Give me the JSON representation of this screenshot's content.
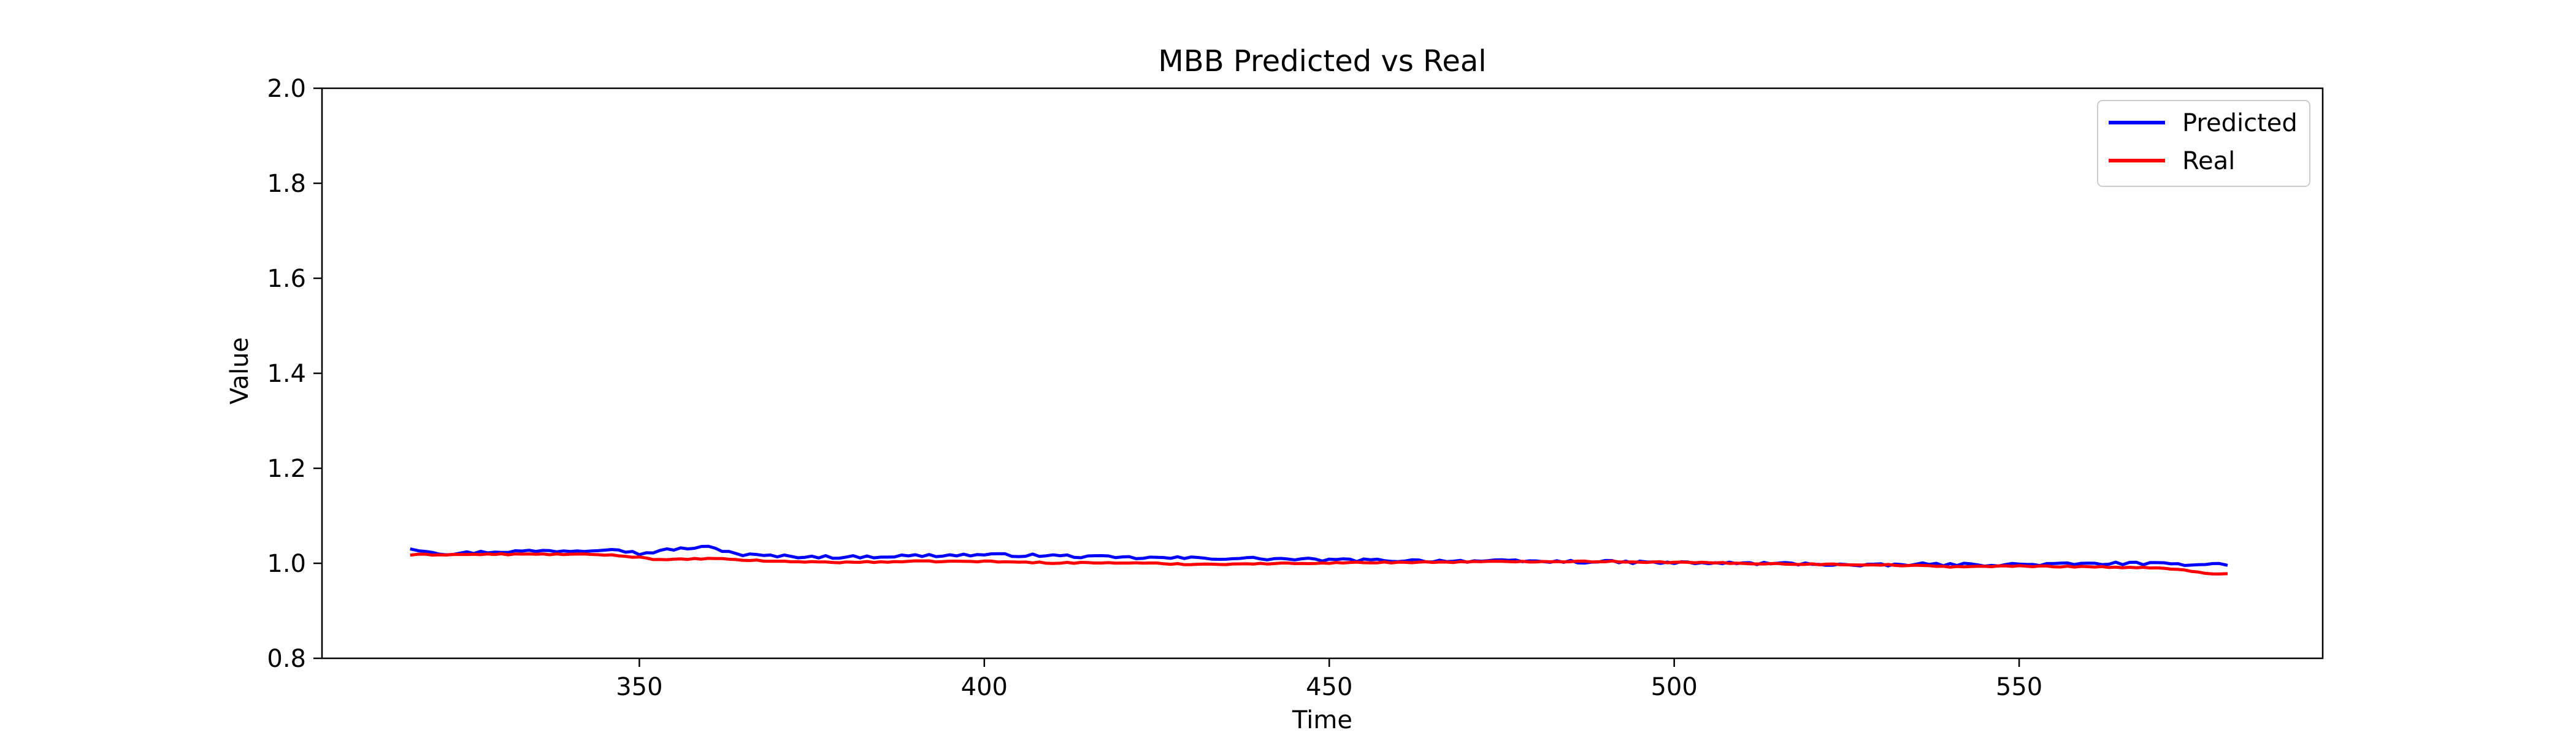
{
  "chart_data": {
    "type": "line",
    "title": "MBB Predicted vs Real",
    "xlabel": "Time",
    "ylabel": "Value",
    "xlim": [
      304,
      594
    ],
    "ylim": [
      0.8,
      2.0
    ],
    "x_ticks": [
      350,
      400,
      450,
      500,
      550
    ],
    "y_ticks": [
      0.8,
      1.0,
      1.2,
      1.4,
      1.6,
      1.8,
      2.0
    ],
    "x_tick_labels": [
      "350",
      "400",
      "450",
      "500",
      "550"
    ],
    "y_tick_labels": [
      "0.8",
      "1.0",
      "1.2",
      "1.4",
      "1.6",
      "1.8",
      "2.0"
    ],
    "grid": false,
    "legend_position": "top-right",
    "x_start": 317,
    "x_end": 580,
    "series": [
      {
        "name": "Predicted",
        "color": "#0000ff",
        "anchors": [
          [
            317,
            1.031
          ],
          [
            322,
            1.02
          ],
          [
            328,
            1.024
          ],
          [
            335,
            1.026
          ],
          [
            342,
            1.027
          ],
          [
            346,
            1.032
          ],
          [
            350,
            1.02
          ],
          [
            355,
            1.03
          ],
          [
            360,
            1.034
          ],
          [
            365,
            1.018
          ],
          [
            370,
            1.015
          ],
          [
            380,
            1.013
          ],
          [
            390,
            1.016
          ],
          [
            400,
            1.018
          ],
          [
            410,
            1.016
          ],
          [
            420,
            1.012
          ],
          [
            430,
            1.011
          ],
          [
            440,
            1.01
          ],
          [
            450,
            1.007
          ],
          [
            460,
            1.006
          ],
          [
            470,
            1.005
          ],
          [
            480,
            1.004
          ],
          [
            490,
            1.003
          ],
          [
            500,
            1.001
          ],
          [
            510,
            1.0
          ],
          [
            520,
            0.999
          ],
          [
            528,
            0.995
          ],
          [
            535,
            0.998
          ],
          [
            545,
            0.997
          ],
          [
            555,
            0.998
          ],
          [
            565,
            1.0
          ],
          [
            572,
            0.998
          ],
          [
            580,
            0.999
          ]
        ],
        "noise": 0.003
      },
      {
        "name": "Real",
        "color": "#ff0000",
        "anchors": [
          [
            317,
            1.018
          ],
          [
            330,
            1.019
          ],
          [
            340,
            1.019
          ],
          [
            345,
            1.018
          ],
          [
            350,
            1.013
          ],
          [
            353,
            1.007
          ],
          [
            360,
            1.01
          ],
          [
            370,
            1.004
          ],
          [
            380,
            1.002
          ],
          [
            390,
            1.004
          ],
          [
            400,
            1.004
          ],
          [
            410,
            1.001
          ],
          [
            420,
            1.001
          ],
          [
            430,
            0.998
          ],
          [
            440,
            0.999
          ],
          [
            450,
            1.001
          ],
          [
            460,
            1.002
          ],
          [
            470,
            1.003
          ],
          [
            480,
            1.004
          ],
          [
            490,
            1.004
          ],
          [
            500,
            1.002
          ],
          [
            510,
            1.0
          ],
          [
            520,
            0.998
          ],
          [
            530,
            0.997
          ],
          [
            540,
            0.993
          ],
          [
            550,
            0.994
          ],
          [
            560,
            0.993
          ],
          [
            570,
            0.99
          ],
          [
            575,
            0.984
          ],
          [
            578,
            0.978
          ],
          [
            580,
            0.978
          ]
        ],
        "noise": 0.0012
      }
    ]
  }
}
